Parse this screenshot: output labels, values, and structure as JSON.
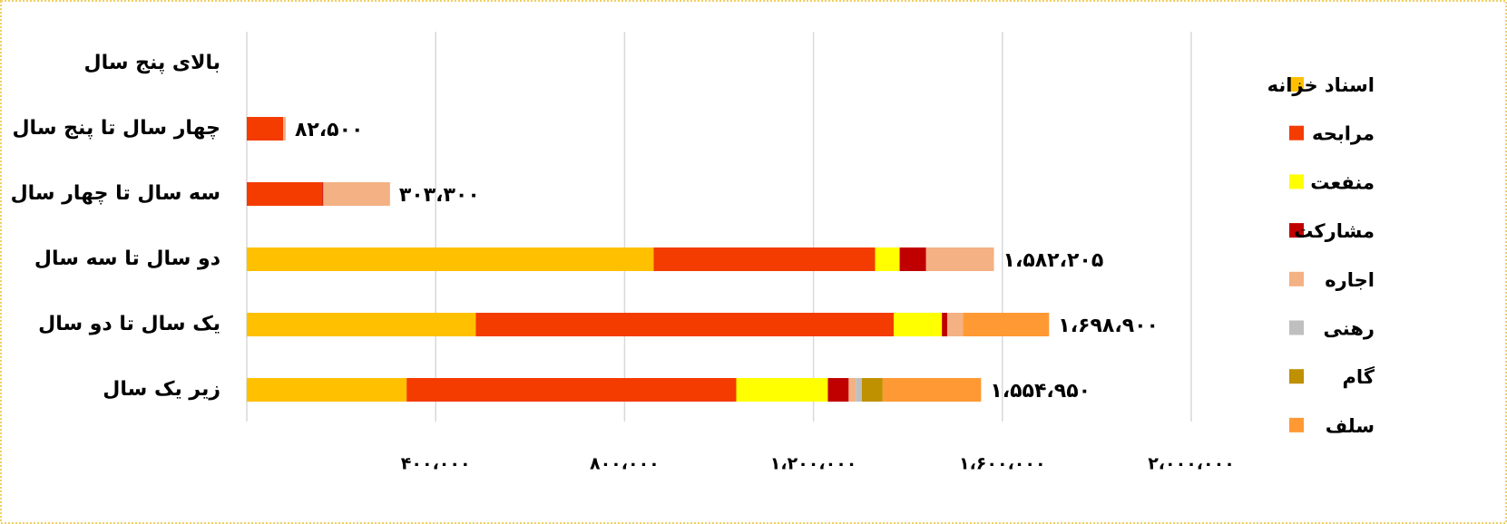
{
  "chart_data": {
    "type": "stacked-bar-horizontal",
    "categories": [
      "بالای پنج سال",
      "چهار سال تا پنج سال",
      "سه سال تا چهار سال",
      "دو سال تا سه سال",
      "یک سال تا دو سال",
      "زیر یک سال"
    ],
    "series": [
      {
        "name": "اسناد خزانه",
        "color": "#FFC000",
        "values": [
          null,
          null,
          null,
          861500,
          485000,
          338500
        ]
      },
      {
        "name": "مرابحه",
        "color": "#F43B00",
        "values": [
          null,
          77000,
          160000,
          469000,
          885000,
          698000
        ]
      },
      {
        "name": "منفعت",
        "color": "#FFFF00",
        "values": [
          null,
          null,
          null,
          52000,
          102000,
          194000
        ]
      },
      {
        "name": "مشارکت",
        "color": "#C00000",
        "values": [
          null,
          null,
          2000,
          56000,
          11500,
          44000
        ]
      },
      {
        "name": "اجاره",
        "color": "#F4B183",
        "values": [
          null,
          5500,
          141300,
          143705,
          33000,
          15000
        ]
      },
      {
        "name": "رهنی",
        "color": "#BFBFBF",
        "values": [
          null,
          null,
          null,
          null,
          null,
          13000
        ]
      },
      {
        "name": "گام",
        "color": "#BF9000",
        "values": [
          null,
          null,
          null,
          null,
          null,
          44000
        ]
      },
      {
        "name": "سلف",
        "color": "#FF9933",
        "values": [
          null,
          null,
          null,
          null,
          182400,
          208450
        ]
      }
    ],
    "total_labels": [
      null,
      "۸۲،۵۰۰",
      "۳۰۳،۳۰۰",
      "۱،۵۸۲،۲۰۵",
      "۱،۶۹۸،۹۰۰",
      "۱،۵۵۴،۹۵۰"
    ],
    "xlim": [
      0,
      2000000
    ],
    "xticks": [
      {
        "value": 400000,
        "label": "۴۰۰،۰۰۰"
      },
      {
        "value": 800000,
        "label": "۸۰۰،۰۰۰"
      },
      {
        "value": 1200000,
        "label": "۱،۲۰۰،۰۰۰"
      },
      {
        "value": 1600000,
        "label": "۱،۶۰۰،۰۰۰"
      },
      {
        "value": 2000000,
        "label": "۲،۰۰۰،۰۰۰"
      }
    ],
    "grid": true,
    "legend": "right"
  }
}
